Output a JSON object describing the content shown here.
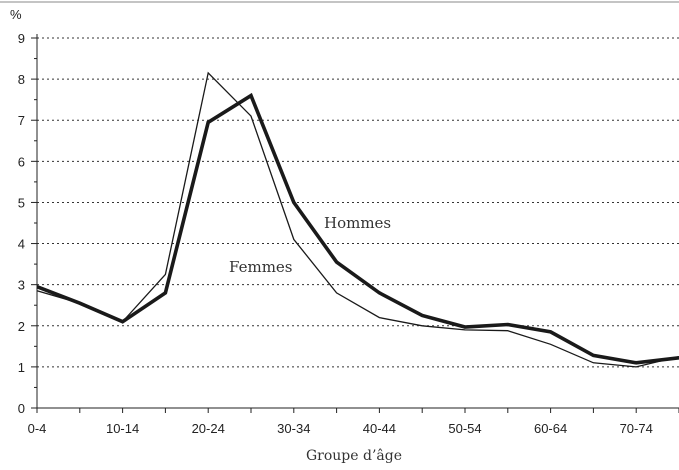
{
  "chart_data": {
    "type": "line",
    "unit_label": "%",
    "xlabel": "Groupe d’âge",
    "ylabel": "",
    "ylim": [
      0,
      9
    ],
    "yticks": [
      0,
      1,
      2,
      3,
      4,
      5,
      6,
      7,
      8,
      9
    ],
    "grid": "horizontal-dotted",
    "categories": [
      "0-4",
      "5-9",
      "10-14",
      "15-19",
      "20-24",
      "25-29",
      "30-34",
      "35-39",
      "40-44",
      "45-49",
      "50-54",
      "55-59",
      "60-64",
      "65-69",
      "70-74",
      "75-79"
    ],
    "xtick_labels": [
      "0-4",
      "",
      "10-14",
      "",
      "20-24",
      "",
      "30-34",
      "",
      "40-44",
      "",
      "50-54",
      "",
      "60-64",
      "",
      "70-74",
      ""
    ],
    "series": [
      {
        "name": "Hommes",
        "style": "thick",
        "color": "#1a1a1a",
        "values": [
          2.95,
          2.55,
          2.1,
          2.8,
          6.95,
          7.6,
          5.0,
          3.55,
          2.8,
          2.25,
          1.97,
          2.03,
          1.85,
          1.28,
          1.1,
          1.22
        ]
      },
      {
        "name": "Femmes",
        "style": "thin",
        "color": "#1a1a1a",
        "values": [
          2.85,
          2.55,
          2.1,
          3.25,
          8.15,
          7.1,
          4.1,
          2.8,
          2.2,
          2.0,
          1.9,
          1.88,
          1.55,
          1.1,
          1.0,
          1.25
        ]
      }
    ]
  }
}
